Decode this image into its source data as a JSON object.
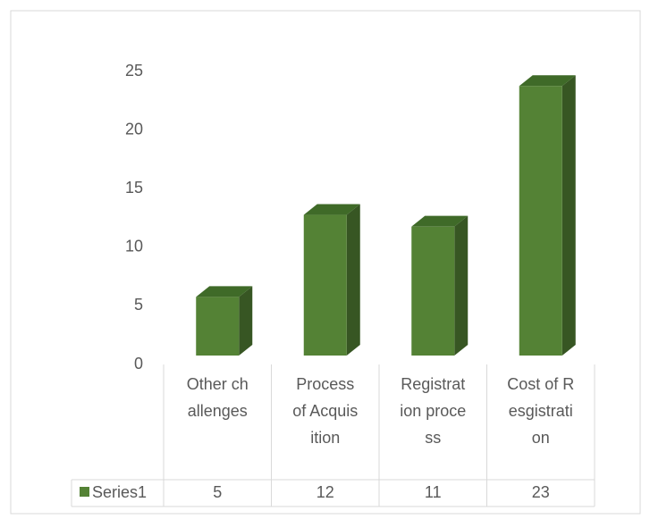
{
  "chart_data": {
    "type": "bar3d",
    "categories": [
      "Other challenges",
      "Process of Acquisition",
      "Registration process",
      "Cost of Resgistration"
    ],
    "series": [
      {
        "name": "Series1",
        "color": "#548235",
        "values": [
          5,
          12,
          11,
          23
        ]
      }
    ],
    "ylim": [
      0,
      25
    ],
    "yticks": [
      0,
      5,
      10,
      15,
      20,
      25
    ],
    "data_table": true
  }
}
